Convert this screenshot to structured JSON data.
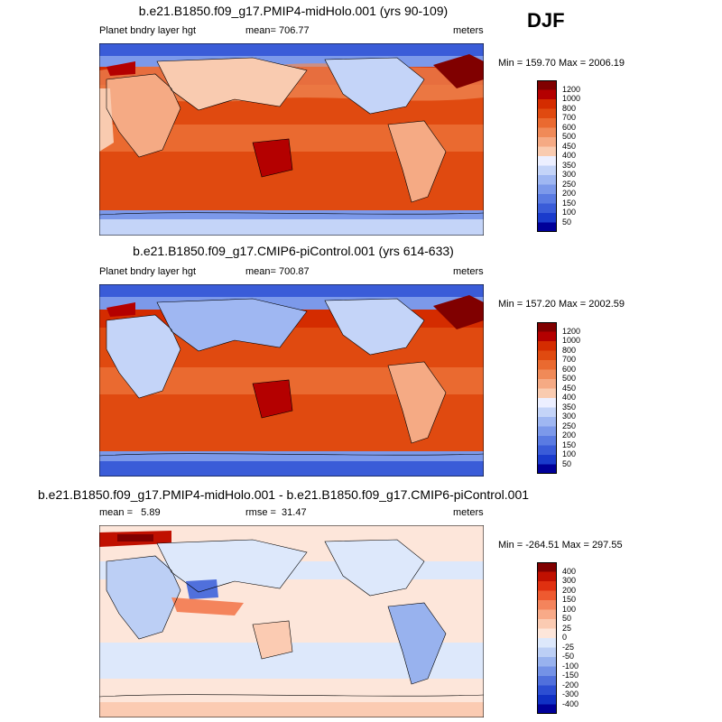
{
  "season": "DJF",
  "panels": [
    {
      "title": "b.e21.B1850.f09_g17.PMIP4-midHolo.001 (yrs 90-109)",
      "left_label": "Planet bndry layer hgt",
      "center_label": "mean= 706.77",
      "right_label": "meters",
      "minmax": "Min = 159.70 Max = 2006.19",
      "colorbar": {
        "labels": [
          "1200",
          "1000",
          "800",
          "700",
          "600",
          "500",
          "450",
          "400",
          "350",
          "300",
          "250",
          "200",
          "150",
          "100",
          "50"
        ],
        "colors": [
          "#800000",
          "#b40000",
          "#d42c00",
          "#e04a10",
          "#ea6a30",
          "#f08a58",
          "#f5aa84",
          "#f9cbb0",
          "#ecefff",
          "#c4d4f8",
          "#9fb7f2",
          "#7c99ea",
          "#5a7be2",
          "#3a5cd8",
          "#1a3bcc",
          "#000099"
        ]
      }
    },
    {
      "title": "b.e21.B1850.f09_g17.CMIP6-piControl.001 (yrs 614-633)",
      "left_label": "Planet bndry layer hgt",
      "center_label": "mean= 700.87",
      "right_label": "meters",
      "minmax": "Min = 157.20 Max = 2002.59",
      "colorbar": {
        "labels": [
          "1200",
          "1000",
          "800",
          "700",
          "600",
          "500",
          "450",
          "400",
          "350",
          "300",
          "250",
          "200",
          "150",
          "100",
          "50"
        ],
        "colors": [
          "#800000",
          "#b40000",
          "#d42c00",
          "#e04a10",
          "#ea6a30",
          "#f08a58",
          "#f5aa84",
          "#f9cbb0",
          "#ecefff",
          "#c4d4f8",
          "#9fb7f2",
          "#7c99ea",
          "#5a7be2",
          "#3a5cd8",
          "#1a3bcc",
          "#000099"
        ]
      }
    },
    {
      "title": "b.e21.B1850.f09_g17.PMIP4-midHolo.001 - b.e21.B1850.f09_g17.CMIP6-piControl.001",
      "left_label": "mean =   5.89",
      "center_label": "rmse =  31.47",
      "right_label": "meters",
      "minmax": "Min = -264.51 Max = 297.55",
      "colorbar": {
        "labels": [
          "400",
          "300",
          "200",
          "150",
          "100",
          "50",
          "25",
          "0",
          "-25",
          "-50",
          "-100",
          "-150",
          "-200",
          "-300",
          "-400"
        ],
        "colors": [
          "#800000",
          "#c01000",
          "#e03010",
          "#ee5a30",
          "#f4845c",
          "#f8aa88",
          "#fbcbb2",
          "#fde6da",
          "#dde8fb",
          "#bccff5",
          "#98b2ee",
          "#7492e6",
          "#5070dc",
          "#2c4ed2",
          "#1030c4",
          "#000099"
        ]
      }
    }
  ]
}
